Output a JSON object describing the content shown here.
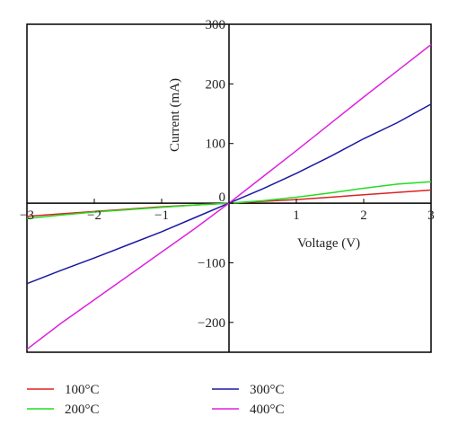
{
  "chart_data": {
    "type": "line",
    "xlabel": "Voltage (V)",
    "ylabel": "Current (mA)",
    "xlim": [
      -3,
      3
    ],
    "ylim": [
      -250,
      300
    ],
    "xticks": [
      -3,
      -2,
      -1,
      0,
      1,
      2,
      3
    ],
    "yticks": [
      300,
      200,
      100,
      0,
      -100,
      -200
    ],
    "xtick_labels": [
      "−3",
      "−2",
      "−1",
      "0",
      "1",
      "2",
      "3"
    ],
    "ytick_labels": [
      "300",
      "200",
      "100",
      "0",
      "−100",
      "−200"
    ],
    "grid": false,
    "legend_position": "bottom",
    "series": [
      {
        "name": "100°C",
        "color": "#dd2222",
        "x": [
          -3,
          -2.5,
          -2,
          -1.5,
          -1,
          -0.5,
          0,
          0.5,
          1,
          1.5,
          2,
          2.5,
          3
        ],
        "y": [
          -22,
          -18,
          -14,
          -10,
          -6,
          -3,
          0,
          3,
          6,
          10,
          14,
          18,
          22
        ]
      },
      {
        "name": "200°C",
        "color": "#22dd22",
        "x": [
          -3,
          -2.5,
          -2,
          -1.5,
          -1,
          -0.5,
          0,
          0.5,
          1,
          1.5,
          2,
          2.5,
          3
        ],
        "y": [
          -26,
          -20,
          -15,
          -11,
          -7,
          -3,
          0,
          4,
          10,
          17,
          25,
          32,
          36
        ]
      },
      {
        "name": "300°C",
        "color": "#1a1aa0",
        "x": [
          -3,
          -2.5,
          -2,
          -1.5,
          -1,
          -0.5,
          0,
          0.5,
          1,
          1.5,
          2,
          2.5,
          3
        ],
        "y": [
          -135,
          -113,
          -92,
          -70,
          -48,
          -24,
          0,
          24,
          50,
          78,
          108,
          135,
          166
        ]
      },
      {
        "name": "400°C",
        "color": "#dd22dd",
        "x": [
          -3,
          -2.5,
          -2,
          -1.5,
          -1,
          -0.5,
          0,
          0.5,
          1,
          1.5,
          2,
          2.5,
          3
        ],
        "y": [
          -245,
          -202,
          -162,
          -122,
          -82,
          -42,
          0,
          44,
          88,
          133,
          178,
          222,
          266
        ]
      }
    ]
  }
}
